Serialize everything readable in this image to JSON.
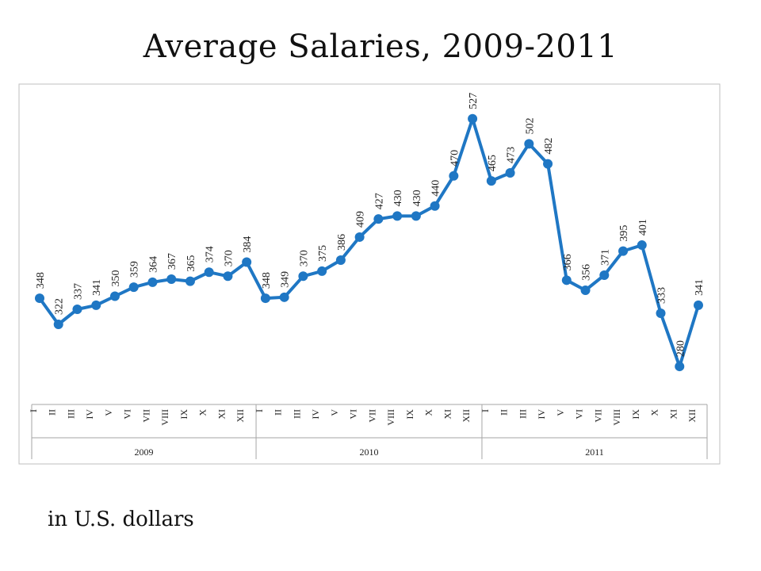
{
  "title": "Average Salaries, 2009-2011",
  "subtitle": "in U.S. dollars",
  "chart_data": {
    "type": "line",
    "color": "#1f77c4",
    "months": [
      "I",
      "II",
      "III",
      "IV",
      "V",
      "VI",
      "VII",
      "VIII",
      "IX",
      "X",
      "XI",
      "XII"
    ],
    "years": [
      "2009",
      "2010",
      "2011"
    ],
    "values": [
      348,
      322,
      337,
      341,
      350,
      359,
      364,
      367,
      365,
      374,
      370,
      384,
      348,
      349,
      370,
      375,
      386,
      409,
      427,
      430,
      430,
      440,
      470,
      527,
      465,
      473,
      502,
      482,
      366,
      356,
      371,
      395,
      401,
      333,
      280,
      341
    ],
    "ylim": [
      250,
      560
    ],
    "grid": false,
    "legend": "none"
  }
}
